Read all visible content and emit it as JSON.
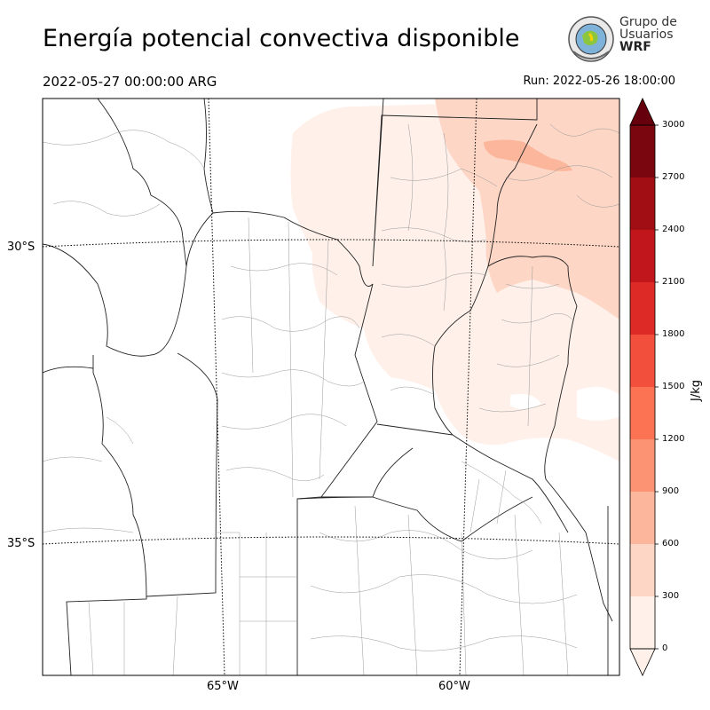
{
  "header": {
    "title": "Energía potencial convectiva disponible",
    "valid_time": "2022-05-27 00:00:00 ARG",
    "run_time": "Run: 2022-05-26 18:00:00"
  },
  "logo": {
    "line1": "Grupo de",
    "line2": "Usuarios",
    "line3": "WRF"
  },
  "map": {
    "lat_labels": [
      "30°S",
      "35°S"
    ],
    "lon_labels": [
      "65°W",
      "60°W"
    ]
  },
  "colorbar": {
    "unit": "J/kg",
    "ticks": [
      "0",
      "300",
      "600",
      "900",
      "1200",
      "1500",
      "1800",
      "2100",
      "2400",
      "2700",
      "3000"
    ],
    "colors": [
      "#fff0ea",
      "#fdd6c6",
      "#fcb69c",
      "#fc9473",
      "#fb7353",
      "#f24f3c",
      "#de2a26",
      "#c1161b",
      "#a10f15",
      "#7a0610"
    ],
    "extend_over_color": "#67000d"
  }
}
